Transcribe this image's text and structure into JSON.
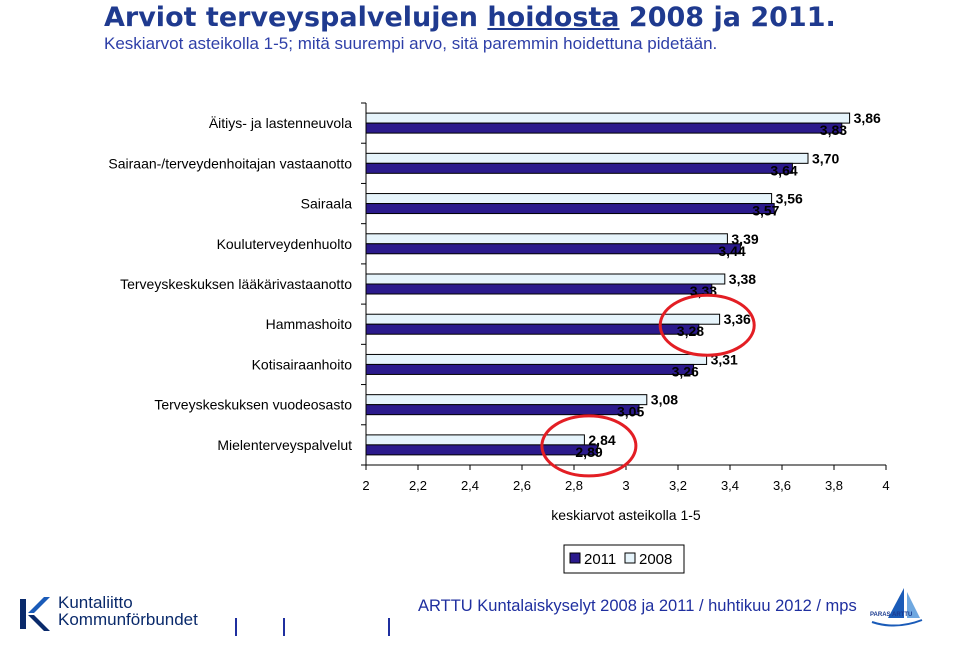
{
  "header": {
    "title_prefix": "Arviot terveyspalvelujen ",
    "title_underlined": "hoidosta",
    "title_suffix": " 2008 ja 2011.",
    "subtitle": "Keskiarvot asteikolla 1-5; mitä suurempi arvo, sitä paremmin hoidettuna pidetään."
  },
  "chart_data": {
    "type": "bar",
    "orientation": "horizontal",
    "categories": [
      "Äitiys- ja lastenneuvola",
      "Sairaan-/terveydenhoitajan vastaanotto",
      "Sairaala",
      "Kouluterveydenhuolto",
      "Terveyskeskuksen lääkärivastaanotto",
      "Hammashoito",
      "Kotisairaanhoito",
      "Terveyskeskuksen vuodeosasto",
      "Mielenterveyspalvelut"
    ],
    "series": [
      {
        "name": "2011",
        "color": "#2b1a8c",
        "values": [
          3.83,
          3.64,
          3.57,
          3.44,
          3.33,
          3.28,
          3.26,
          3.05,
          2.89
        ],
        "labels": [
          "3,83",
          "3,64",
          "3,57",
          "3,44",
          "3,33",
          "3,28",
          "3,26",
          "3,05",
          "2,89"
        ]
      },
      {
        "name": "2008",
        "color": "#e6f4fb",
        "values": [
          3.86,
          3.7,
          3.56,
          3.39,
          3.38,
          3.36,
          3.31,
          3.08,
          2.84
        ],
        "labels": [
          "3,86",
          "3,70",
          "3,56",
          "3,39",
          "3,38",
          "3,36",
          "3,31",
          "3,08",
          "2,84"
        ]
      }
    ],
    "xlim": [
      2,
      4
    ],
    "xticks": [
      "2",
      "2,2",
      "2,4",
      "2,6",
      "2,8",
      "3",
      "3,2",
      "3,4",
      "3,6",
      "3,8",
      "4"
    ],
    "xlabel": "keskiarvot asteikolla 1-5",
    "legend": [
      "2011",
      "2008"
    ],
    "legend_position": "bottom",
    "highlight_circles": [
      "Hammashoito",
      "Mielenterveyspalvelut"
    ],
    "highlight_color": "#e31e24"
  },
  "footer": {
    "text": "ARTTU Kuntalaiskyselyt 2008 ja 2011 / huhtikuu 2012 / mps",
    "logo_line1": "Kuntaliitto",
    "logo_line2": "Kommunförbundet",
    "arttu_logo": "PARAS ARTTU"
  }
}
